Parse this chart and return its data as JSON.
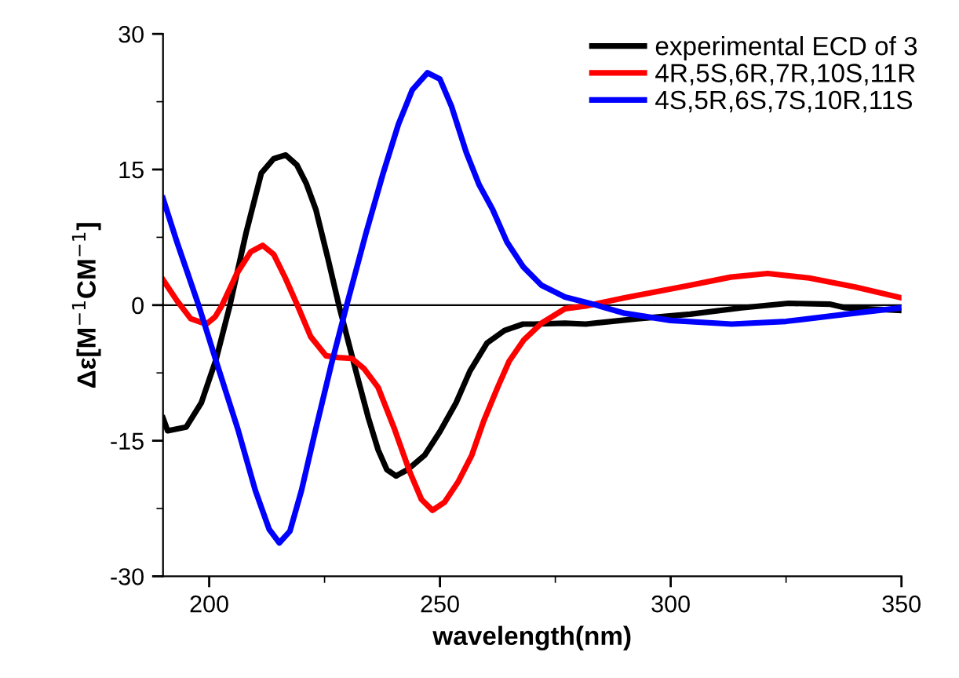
{
  "chart_data": {
    "type": "line",
    "xlabel": "wavelength(nm)",
    "ylabel": "Δε[M$^{−1}$CM$^{−1}$]",
    "xlim": [
      190,
      350
    ],
    "ylim": [
      -30,
      30
    ],
    "xticks": [
      200,
      250,
      300,
      350
    ],
    "yticks": [
      -30,
      -15,
      0,
      15,
      30
    ],
    "grid": false,
    "legend": "top right",
    "marker": "none",
    "line_style": "solid",
    "ref_lines": [
      {
        "axis": "y",
        "value": 0,
        "color": "#000000"
      }
    ],
    "series": [
      {
        "name": "experimental ECD of 3",
        "color": "#000000",
        "x": [
          190,
          191,
          195,
          198.3,
          201.5,
          204.5,
          208,
          211.3,
          214,
          216.6,
          219,
          221,
          223.1,
          225.8,
          228.1,
          232.1,
          234.5,
          236.6,
          238.5,
          240.5,
          243,
          246.7,
          250,
          253.5,
          256.5,
          260.2,
          264,
          268,
          270.4,
          277.1,
          281.6,
          292.9,
          304.2,
          315.4,
          325.5,
          334.6,
          337.9,
          350
        ],
        "values": [
          -12.5,
          -13.9,
          -13.5,
          -10.8,
          -6,
          0,
          8,
          14.6,
          16.2,
          16.6,
          15.5,
          13.5,
          10.6,
          5,
          0,
          -7.9,
          -12.5,
          -16,
          -18.2,
          -18.9,
          -18.2,
          -16.6,
          -14,
          -10.8,
          -7.3,
          -4.2,
          -2.8,
          -2.1,
          -2.1,
          -2,
          -2.1,
          -1.5,
          -1,
          -0.3,
          0.2,
          0.1,
          -0.3,
          -0.6
        ]
      },
      {
        "name": "4R,5S,6R,7R,10S,11R",
        "color": "#ff0000",
        "x": [
          190,
          193,
          196,
          199.4,
          201.3,
          202.8,
          206,
          209,
          211.6,
          214,
          216.5,
          219.1,
          222,
          225.3,
          228,
          230.9,
          233.5,
          236.6,
          240,
          243.5,
          246,
          248.4,
          251,
          254,
          256.9,
          259.5,
          262.5,
          265,
          268.1,
          272,
          277.1,
          281.6,
          290,
          304.2,
          313,
          321,
          330,
          340,
          350
        ],
        "values": [
          2.8,
          0.5,
          -1.5,
          -2.1,
          -1.3,
          0,
          3.5,
          5.9,
          6.6,
          5.6,
          3,
          0,
          -3.5,
          -5.6,
          -5.8,
          -5.9,
          -7,
          -9.1,
          -13.5,
          -18.5,
          -21.5,
          -22.7,
          -21.8,
          -19.5,
          -16.6,
          -12.8,
          -9.1,
          -6.2,
          -3.9,
          -2,
          -0.4,
          -0.1,
          0.8,
          2.2,
          3.1,
          3.5,
          3,
          2,
          0.8
        ]
      },
      {
        "name": "4S,5R,6S,7S,10R,11S",
        "color": "#0000ff",
        "x": [
          190,
          193,
          197.7,
          202,
          206.2,
          210,
          213,
          215.2,
          217.5,
          220,
          223.1,
          226.5,
          229.8,
          234,
          237.7,
          241,
          244,
          247.3,
          250,
          252.5,
          255.7,
          258.5,
          261.4,
          264.5,
          268.1,
          272,
          277.1,
          283.9,
          290,
          300,
          313.2,
          325,
          338,
          350
        ],
        "values": [
          11.8,
          7,
          0,
          -7,
          -13.7,
          -20.5,
          -24.8,
          -26.3,
          -25,
          -20.5,
          -13.7,
          -6.5,
          0,
          8,
          14.6,
          20,
          23.8,
          25.7,
          25,
          22,
          16.9,
          13.3,
          10.6,
          7,
          4.2,
          2.2,
          0.9,
          0,
          -0.9,
          -1.7,
          -2.1,
          -1.8,
          -1,
          -0.3
        ]
      }
    ]
  }
}
